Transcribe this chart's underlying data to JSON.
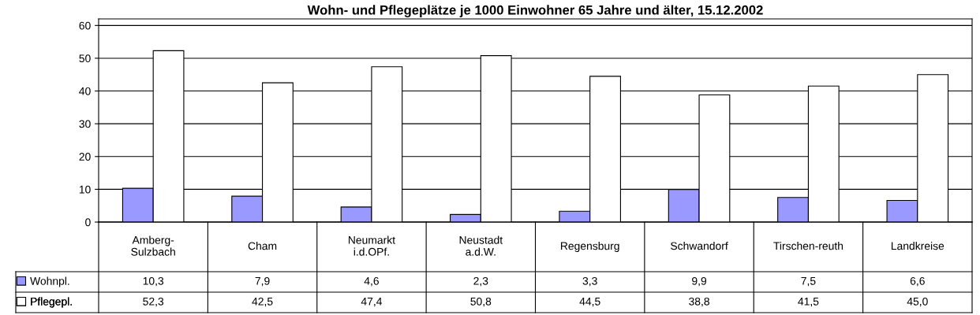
{
  "chart_data": {
    "type": "bar",
    "title": "Wohn- und Pflegeplätze je 1000 Einwohner 65 Jahre und älter, 15.12.2002",
    "categories": [
      "Amberg-\nSulzbach",
      "Cham",
      "Neumarkt\ni.d.OPf.",
      "Neustadt\na.d.W.",
      "Regensburg",
      "Schwandorf",
      "Tirschen-reuth",
      "Landkreise"
    ],
    "series": [
      {
        "name": "Wohnpl.",
        "color": "#9999ff",
        "values": [
          10.3,
          7.9,
          4.6,
          2.3,
          3.3,
          9.9,
          7.5,
          6.6
        ],
        "value_labels": [
          "10,3",
          "7,9",
          "4,6",
          "2,3",
          "3,3",
          "9,9",
          "7,5",
          "6,6"
        ]
      },
      {
        "name": "Pflegepl.",
        "color": "#ffffff",
        "values": [
          52.3,
          42.5,
          47.4,
          50.8,
          44.5,
          38.8,
          41.5,
          45.0
        ],
        "value_labels": [
          "52,3",
          "42,5",
          "47,4",
          "50,8",
          "44,5",
          "38,8",
          "41,5",
          "45,0"
        ]
      }
    ],
    "legend": "left",
    "ylim": [
      0,
      62
    ],
    "yticks": [
      0,
      10,
      20,
      30,
      40,
      50,
      60
    ],
    "grid": "y"
  }
}
